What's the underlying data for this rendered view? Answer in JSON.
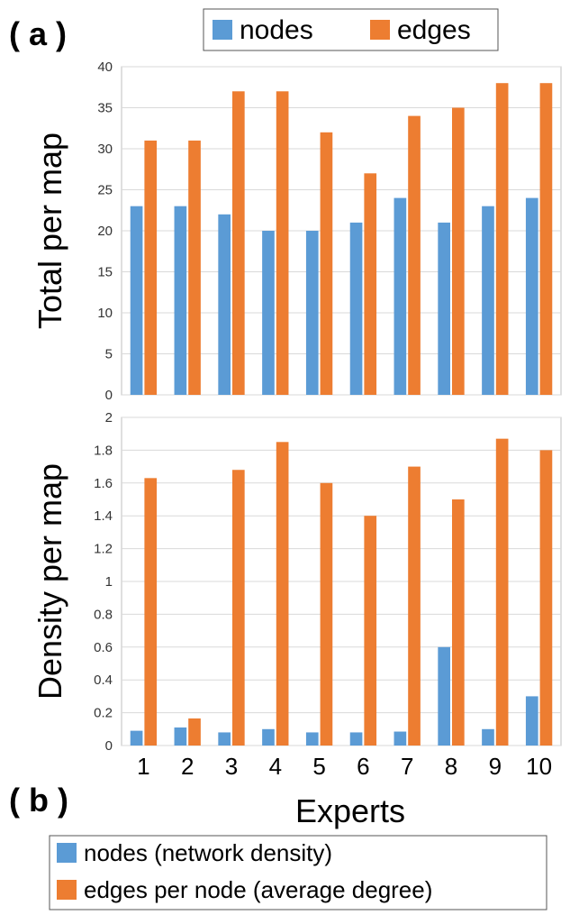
{
  "panel_labels": {
    "a": "( a )",
    "b": "( b )"
  },
  "colors": {
    "nodes": "#5B9BD5",
    "edges": "#ED7D31"
  },
  "chart_data": [
    {
      "type": "bar",
      "categories": [
        "1",
        "2",
        "3",
        "4",
        "5",
        "6",
        "7",
        "8",
        "9",
        "10"
      ],
      "series": [
        {
          "name": "nodes",
          "values": [
            23,
            23,
            22,
            20,
            20,
            21,
            24,
            21,
            23,
            24
          ]
        },
        {
          "name": "edges",
          "values": [
            31,
            31,
            37,
            37,
            32,
            27,
            34,
            35,
            38,
            38
          ]
        }
      ],
      "ylabel": "Total per map",
      "ylim": [
        0,
        40
      ],
      "yticks": [
        "0",
        "5",
        "10",
        "15",
        "20",
        "25",
        "30",
        "35",
        "40"
      ],
      "grid": "horizontal",
      "legend": {
        "placement": "top",
        "labels": [
          "nodes",
          "edges"
        ]
      }
    },
    {
      "type": "bar",
      "categories": [
        "1",
        "2",
        "3",
        "4",
        "5",
        "6",
        "7",
        "8",
        "9",
        "10"
      ],
      "series": [
        {
          "name": "nodes (network density)",
          "values": [
            0.09,
            0.11,
            0.08,
            0.1,
            0.08,
            0.08,
            0.085,
            0.6,
            0.1,
            0.3
          ]
        },
        {
          "name": "edges per node (average degree)",
          "values": [
            1.63,
            0.165,
            1.68,
            1.85,
            1.6,
            1.4,
            1.7,
            1.5,
            1.87,
            1.8
          ]
        }
      ],
      "xlabel": "Experts",
      "ylabel": "Density per map",
      "ylim": [
        0,
        2
      ],
      "yticks": [
        "0",
        "0.2",
        "0.4",
        "0.6",
        "0.8",
        "1",
        "1.2",
        "1.4",
        "1.6",
        "1.8",
        "2"
      ],
      "grid": "horizontal",
      "legend": {
        "placement": "bottom",
        "labels": [
          "nodes (network density)",
          "edges per node (average degree)"
        ]
      }
    }
  ]
}
